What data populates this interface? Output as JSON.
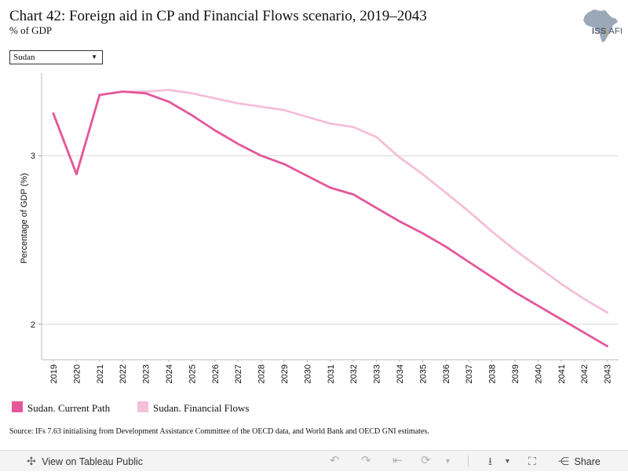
{
  "header": {
    "title": "Chart 42: Foreign aid in CP and Financial Flows scenario, 2019–2043",
    "subtitle": "% of GDP"
  },
  "logo": {
    "text_a": "ISS",
    "separator": "|",
    "text_b": "AFI"
  },
  "filter": {
    "selected": "Sudan"
  },
  "chart_data": {
    "type": "line",
    "title": "Chart 42: Foreign aid in CP and Financial Flows scenario, 2019–2043",
    "subtitle": "% of GDP",
    "xlabel": "",
    "ylabel": "Percentage of GDP (%)",
    "x": [
      "2019",
      "2020",
      "2021",
      "2022",
      "2023",
      "2024",
      "2025",
      "2026",
      "2027",
      "2028",
      "2029",
      "2030",
      "2031",
      "2032",
      "2033",
      "2034",
      "2035",
      "2036",
      "2037",
      "2038",
      "2039",
      "2040",
      "2041",
      "2042",
      "2043"
    ],
    "yticks": [
      2,
      3
    ],
    "ylim": [
      1.79,
      3.49
    ],
    "grid": true,
    "legend_position": "bottom-left",
    "series": [
      {
        "name": "Sudan. Current Path",
        "color": "#e4579a",
        "values": [
          3.25,
          2.89,
          3.36,
          3.38,
          3.37,
          3.32,
          3.24,
          3.15,
          3.07,
          3.0,
          2.95,
          2.88,
          2.81,
          2.77,
          2.69,
          2.61,
          2.54,
          2.46,
          2.37,
          2.28,
          2.19,
          2.11,
          2.03,
          1.95,
          1.87
        ]
      },
      {
        "name": "Sudan. Financial Flows",
        "color": "#f5bfd9",
        "values": [
          3.25,
          2.89,
          3.36,
          3.38,
          3.38,
          3.39,
          3.37,
          3.34,
          3.31,
          3.29,
          3.27,
          3.23,
          3.19,
          3.17,
          3.11,
          2.99,
          2.89,
          2.78,
          2.67,
          2.55,
          2.44,
          2.34,
          2.24,
          2.15,
          2.07
        ]
      }
    ]
  },
  "source": "Source: IFs 7.63 initialising from Development Assistance Committee of the OECD data, and World Bank and OECD GNI estimates.",
  "toolbar": {
    "view_label": "View on Tableau Public",
    "share_label": "Share"
  }
}
